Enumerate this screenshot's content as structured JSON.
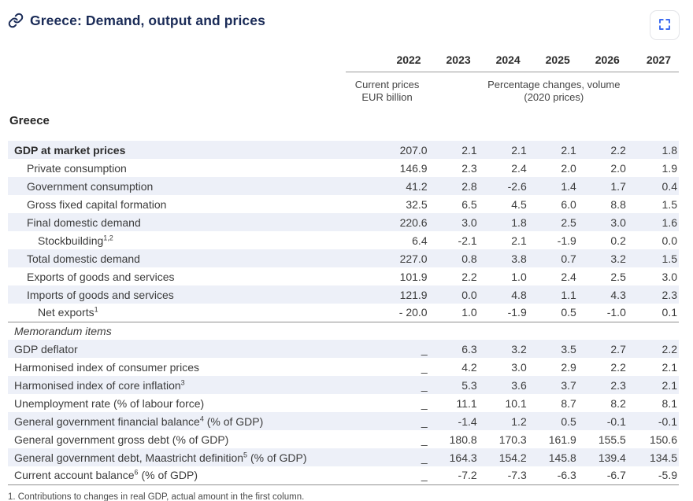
{
  "header": {
    "title": "Greece: Demand, output and prices"
  },
  "icons": {
    "title_icon": "link-icon",
    "expand_icon": "fullscreen-expand-icon"
  },
  "colors": {
    "title_navy": "#1a2b57",
    "accent_blue": "#3d6cf0",
    "row_shade": "#edf0f8"
  },
  "table": {
    "country_label": "Greece",
    "years": [
      "2022",
      "2023",
      "2024",
      "2025",
      "2026",
      "2027"
    ],
    "unit_col_2022": [
      "Current prices",
      "EUR billion"
    ],
    "unit_cols_rest": [
      "Percentage changes, volume",
      "(2020 prices)"
    ],
    "rows": [
      {
        "pre": "GDP at market prices",
        "sup": "",
        "post": "",
        "indent": 0,
        "bold": true,
        "shaded": true,
        "rule": false,
        "full": false,
        "values": [
          "207.0",
          "2.1",
          "2.1",
          "2.1",
          "2.2",
          "1.8"
        ]
      },
      {
        "pre": "Private consumption",
        "sup": "",
        "post": "",
        "indent": 1,
        "bold": false,
        "shaded": false,
        "rule": false,
        "full": false,
        "values": [
          "146.9",
          "2.3",
          "2.4",
          "2.0",
          "2.0",
          "1.9"
        ]
      },
      {
        "pre": "Government consumption",
        "sup": "",
        "post": "",
        "indent": 1,
        "bold": false,
        "shaded": true,
        "rule": false,
        "full": false,
        "values": [
          "41.2",
          "2.8",
          "-2.6",
          "1.4",
          "1.7",
          "0.4"
        ]
      },
      {
        "pre": "Gross fixed capital formation",
        "sup": "",
        "post": "",
        "indent": 1,
        "bold": false,
        "shaded": false,
        "rule": false,
        "full": false,
        "values": [
          "32.5",
          "6.5",
          "4.5",
          "6.0",
          "8.8",
          "1.5"
        ]
      },
      {
        "pre": "Final domestic demand",
        "sup": "",
        "post": "",
        "indent": 1,
        "bold": false,
        "shaded": true,
        "rule": false,
        "full": false,
        "values": [
          "220.6",
          "3.0",
          "1.8",
          "2.5",
          "3.0",
          "1.6"
        ]
      },
      {
        "pre": "Stockbuilding",
        "sup": "1,2",
        "post": "",
        "indent": 2,
        "bold": false,
        "shaded": false,
        "rule": false,
        "full": false,
        "values": [
          "6.4",
          "-2.1",
          "2.1",
          "-1.9",
          "0.2",
          "0.0"
        ]
      },
      {
        "pre": "Total domestic demand",
        "sup": "",
        "post": "",
        "indent": 1,
        "bold": false,
        "shaded": true,
        "rule": false,
        "full": false,
        "values": [
          "227.0",
          "0.8",
          "3.8",
          "0.7",
          "3.2",
          "1.5"
        ]
      },
      {
        "pre": "Exports of goods and services",
        "sup": "",
        "post": "",
        "indent": 1,
        "bold": false,
        "shaded": false,
        "rule": false,
        "full": false,
        "values": [
          "101.9",
          "2.2",
          "1.0",
          "2.4",
          "2.5",
          "3.0"
        ]
      },
      {
        "pre": "Imports of goods and services",
        "sup": "",
        "post": "",
        "indent": 1,
        "bold": false,
        "shaded": true,
        "rule": false,
        "full": false,
        "values": [
          "121.9",
          "0.0",
          "4.8",
          "1.1",
          "4.3",
          "2.3"
        ]
      },
      {
        "pre": "Net exports",
        "sup": "1",
        "post": "",
        "indent": 2,
        "bold": false,
        "shaded": false,
        "rule": true,
        "full": false,
        "values": [
          "- 20.0",
          "1.0",
          "-1.9",
          "0.5",
          "-1.0",
          "0.1"
        ]
      },
      {
        "pre": "Memorandum items",
        "sup": "",
        "post": "",
        "indent": 0,
        "bold": false,
        "shaded": false,
        "rule": false,
        "full": true,
        "values": []
      },
      {
        "pre": "GDP deflator",
        "sup": "",
        "post": "",
        "indent": 0,
        "bold": false,
        "shaded": true,
        "rule": false,
        "full": false,
        "values": [
          "_",
          "6.3",
          "3.2",
          "3.5",
          "2.7",
          "2.2"
        ]
      },
      {
        "pre": "Harmonised index of consumer prices",
        "sup": "",
        "post": "",
        "indent": 0,
        "bold": false,
        "shaded": false,
        "rule": false,
        "full": false,
        "values": [
          "_",
          "4.2",
          "3.0",
          "2.9",
          "2.2",
          "2.1"
        ]
      },
      {
        "pre": "Harmonised index of core inflation",
        "sup": "3",
        "post": "",
        "indent": 0,
        "bold": false,
        "shaded": true,
        "rule": false,
        "full": false,
        "values": [
          "_",
          "5.3",
          "3.6",
          "3.7",
          "2.3",
          "2.1"
        ]
      },
      {
        "pre": "Unemployment rate (% of labour force)",
        "sup": "",
        "post": "",
        "indent": 0,
        "bold": false,
        "shaded": false,
        "rule": false,
        "full": false,
        "values": [
          "_",
          "11.1",
          "10.1",
          "8.7",
          "8.2",
          "8.1"
        ]
      },
      {
        "pre": "General government financial balance",
        "sup": "4",
        "post": " (% of GDP)",
        "indent": 0,
        "bold": false,
        "shaded": true,
        "rule": false,
        "full": false,
        "values": [
          "_",
          "-1.4",
          "1.2",
          "0.5",
          "-0.1",
          "-0.1"
        ]
      },
      {
        "pre": "General government gross debt (% of GDP)",
        "sup": "",
        "post": "",
        "indent": 0,
        "bold": false,
        "shaded": false,
        "rule": false,
        "full": false,
        "values": [
          "_",
          "180.8",
          "170.3",
          "161.9",
          "155.5",
          "150.6"
        ]
      },
      {
        "pre": "General government debt, Maastricht definition",
        "sup": "5",
        "post": " (% of GDP)",
        "indent": 0,
        "bold": false,
        "shaded": true,
        "rule": false,
        "full": false,
        "values": [
          "_",
          "164.3",
          "154.2",
          "145.8",
          "139.4",
          "134.5"
        ]
      },
      {
        "pre": "Current account balance",
        "sup": "6",
        "post": " (% of GDP)",
        "indent": 0,
        "bold": false,
        "shaded": false,
        "rule": true,
        "full": false,
        "values": [
          "_",
          "-7.2",
          "-7.3",
          "-6.3",
          "-6.7",
          "-5.9"
        ]
      }
    ]
  },
  "footnote": "1. Contributions to changes in real GDP, actual amount in the first column."
}
